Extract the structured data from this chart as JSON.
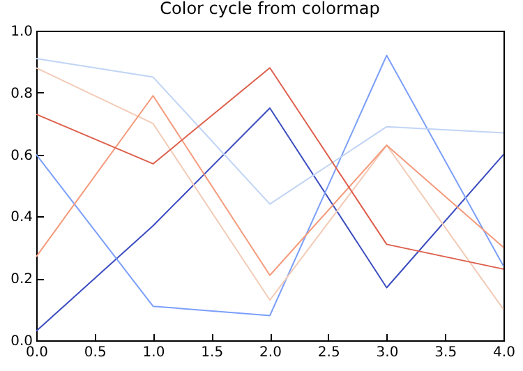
{
  "chart_data": {
    "type": "line",
    "title": "Color cycle from colormap",
    "x": [
      0,
      1,
      2,
      3,
      4
    ],
    "series": [
      {
        "color": "#3b4cc0",
        "values": [
          0.03,
          0.37,
          0.75,
          0.17,
          0.6
        ]
      },
      {
        "color": "#7b9ff9",
        "values": [
          0.6,
          0.11,
          0.08,
          0.92,
          0.24
        ]
      },
      {
        "color": "#c0d4f5",
        "values": [
          0.91,
          0.85,
          0.44,
          0.69,
          0.67
        ]
      },
      {
        "color": "#f2cbb7",
        "values": [
          0.88,
          0.7,
          0.13,
          0.63,
          0.1
        ]
      },
      {
        "color": "#f49a7b",
        "values": [
          0.27,
          0.79,
          0.21,
          0.63,
          0.3
        ]
      },
      {
        "color": "#dd5f4b",
        "values": [
          0.73,
          0.57,
          0.88,
          0.31,
          0.23
        ]
      }
    ],
    "xlim": [
      0,
      4
    ],
    "xticks": [
      {
        "value": 0,
        "label": "0.0"
      },
      {
        "value": 0.5,
        "label": "0.5"
      },
      {
        "value": 1,
        "label": "1.0"
      },
      {
        "value": 1.5,
        "label": "1.5"
      },
      {
        "value": 2,
        "label": "2.0"
      },
      {
        "value": 2.5,
        "label": "2.5"
      },
      {
        "value": 3,
        "label": "3.0"
      },
      {
        "value": 3.5,
        "label": "3.5"
      },
      {
        "value": 4,
        "label": "4.0"
      }
    ],
    "ylim": [
      0,
      1
    ],
    "yticks": [
      {
        "value": 0,
        "label": "0.0"
      },
      {
        "value": 0.2,
        "label": "0.2"
      },
      {
        "value": 0.4,
        "label": "0.4"
      },
      {
        "value": 0.6,
        "label": "0.6"
      },
      {
        "value": 0.8,
        "label": "0.8"
      },
      {
        "value": 1,
        "label": "1.0"
      }
    ],
    "grid": false,
    "legend": false,
    "marker": "none",
    "line_style": "solid"
  }
}
